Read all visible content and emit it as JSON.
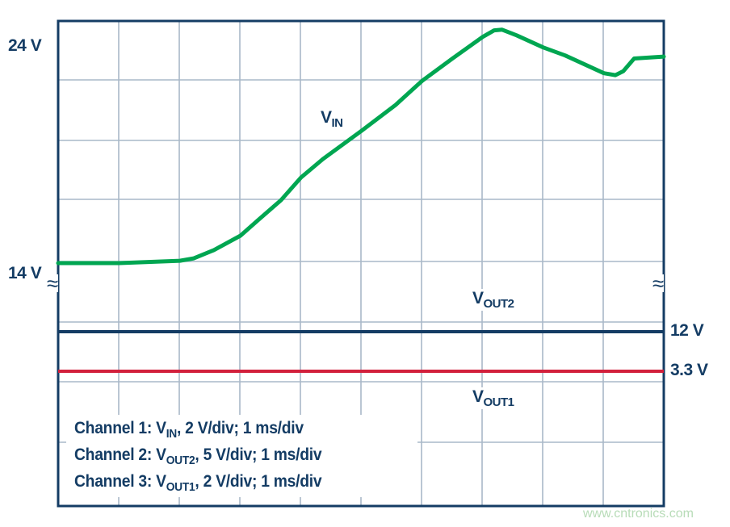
{
  "chart_data": {
    "type": "line",
    "title": "",
    "xlabel": "",
    "ylabel": "",
    "x_unit": "ms",
    "xlim": [
      0,
      10
    ],
    "grid": true,
    "y_tick_labels": [
      "24 V",
      "14 V"
    ],
    "series": [
      {
        "name": "VIN",
        "label_main": "V",
        "label_sub": "IN",
        "color": "#00a651",
        "x": [
          0,
          1.01,
          2.01,
          2.24,
          2.57,
          3.01,
          3.31,
          3.68,
          4.01,
          4.37,
          5.01,
          5.57,
          6.01,
          6.51,
          7.01,
          7.2,
          7.33,
          7.57,
          8.01,
          8.37,
          9.01,
          9.2,
          9.33,
          9.51,
          10
        ],
        "y": [
          14.0,
          14.0,
          14.11,
          14.22,
          14.6,
          15.27,
          16.01,
          16.91,
          17.96,
          18.81,
          20.12,
          21.31,
          22.43,
          23.46,
          24.46,
          24.76,
          24.79,
          24.53,
          23.97,
          23.6,
          22.78,
          22.69,
          22.87,
          23.46,
          23.55
        ]
      },
      {
        "name": "VOUT2",
        "label_main": "V",
        "label_sub": "OUT2",
        "color": "#143c64",
        "value": 12,
        "value_label": "12 V"
      },
      {
        "name": "VOUT1",
        "label_main": "V",
        "label_sub": "OUT1",
        "color": "#d2203c",
        "value": 3.3,
        "value_label": "3.3 V"
      }
    ],
    "annotations": [
      {
        "pre": "Channel 1: V",
        "sub": "IN",
        "post": ", 2 V/div; 1 ms/div"
      },
      {
        "pre": "Channel 2: V",
        "sub": "OUT2",
        "post": ", 5 V/div; 1 ms/div"
      },
      {
        "pre": "Channel 3: V",
        "sub": "OUT1",
        "post": ", 2 V/div; 1 ms/div"
      }
    ],
    "axis_break_symbol": "≈"
  },
  "watermark": "www.cntronics.com"
}
